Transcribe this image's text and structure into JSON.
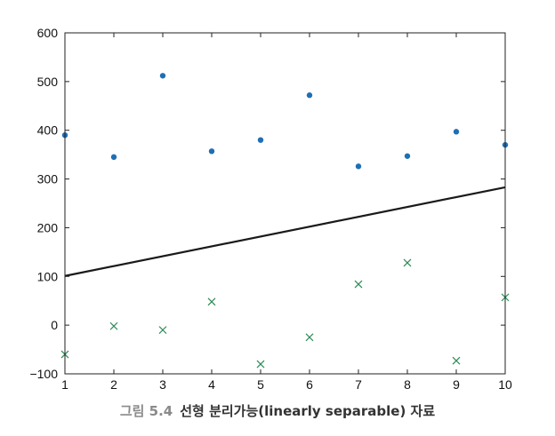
{
  "chart_data": {
    "type": "scatter",
    "xlim": [
      1,
      10
    ],
    "ylim": [
      -100,
      600
    ],
    "xticks": [
      1,
      2,
      3,
      4,
      5,
      6,
      7,
      8,
      9,
      10
    ],
    "yticks": [
      -100,
      0,
      100,
      200,
      300,
      400,
      500,
      600
    ],
    "grid": false,
    "series": [
      {
        "marker": "dot",
        "color": "#1f6fb5",
        "x": [
          1,
          2,
          3,
          4,
          5,
          6,
          7,
          8,
          9,
          10
        ],
        "y": [
          390,
          345,
          512,
          357,
          380,
          472,
          326,
          347,
          397,
          370
        ]
      },
      {
        "marker": "x",
        "color": "#2e8b57",
        "x": [
          1,
          2,
          3,
          4,
          5,
          6,
          7,
          8,
          9,
          10
        ],
        "y": [
          -60,
          -2,
          -10,
          48,
          -80,
          -25,
          84,
          128,
          -73,
          57
        ]
      }
    ],
    "line": {
      "color": "#1a1a1a",
      "x": [
        1,
        10
      ],
      "y": [
        101,
        283
      ]
    }
  },
  "caption": {
    "number": "그림 5.4",
    "title": "선형 분리가능(linearly separable) 자료"
  }
}
